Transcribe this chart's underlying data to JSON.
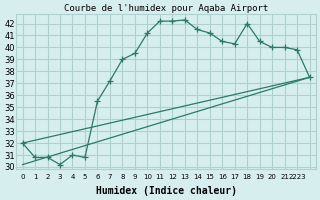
{
  "title": "Courbe de l'humidex pour Aqaba Airport",
  "xlabel": "Humidex (Indice chaleur)",
  "ylabel": "",
  "background_color": "#d6eeee",
  "grid_color": "#b0d0d0",
  "line_color": "#2a7a6a",
  "xlim": [
    -0.5,
    23.5
  ],
  "ylim": [
    29.8,
    42.8
  ],
  "yticks": [
    30,
    31,
    32,
    33,
    34,
    35,
    36,
    37,
    38,
    39,
    40,
    41,
    42
  ],
  "xticks": [
    0,
    1,
    2,
    3,
    4,
    5,
    6,
    7,
    8,
    9,
    10,
    11,
    12,
    13,
    14,
    15,
    16,
    17,
    18,
    19,
    20,
    21,
    22,
    23
  ],
  "xtick_labels": [
    "0",
    "1",
    "2",
    "3",
    "4",
    "5",
    "6",
    "7",
    "8",
    "9",
    "10",
    "11",
    "12",
    "13",
    "14",
    "15",
    "16",
    "17",
    "18",
    "19",
    "20",
    "21",
    "2223",
    ""
  ],
  "series": [
    {
      "x": [
        0,
        1,
        2,
        3,
        4,
        5,
        6,
        7,
        8,
        9,
        10,
        11,
        12,
        13,
        14,
        15,
        16,
        17,
        18,
        19,
        20,
        21,
        22,
        23
      ],
      "y": [
        32.0,
        30.8,
        30.8,
        30.2,
        31.0,
        30.8,
        35.5,
        37.2,
        39.0,
        39.5,
        41.2,
        42.2,
        42.2,
        42.3,
        41.5,
        41.2,
        40.5,
        40.3,
        42.0,
        40.5,
        40.0,
        40.0,
        39.8,
        37.5
      ]
    },
    {
      "x": [
        0,
        23
      ],
      "y": [
        32.0,
        37.5
      ]
    },
    {
      "x": [
        0,
        23
      ],
      "y": [
        30.2,
        37.5
      ]
    }
  ]
}
